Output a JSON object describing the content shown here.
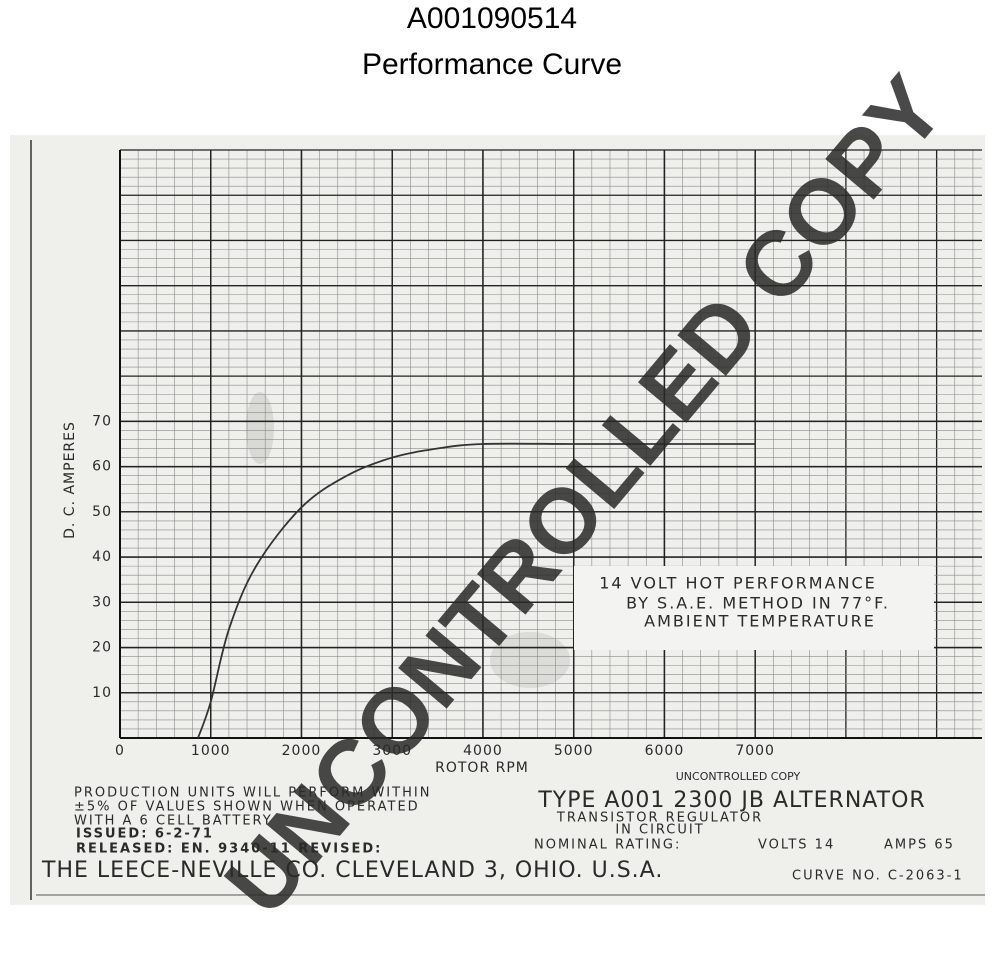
{
  "chart_data": {
    "type": "line",
    "title": "A001090514",
    "subtitle": "Performance Curve",
    "x_label": "ROTOR RPM",
    "y_label": "D. C.  AMPERES",
    "x": [
      860,
      1000,
      1200,
      1500,
      2000,
      2500,
      3000,
      3500,
      4000,
      5000,
      6000,
      7000
    ],
    "values": [
      0,
      8,
      24,
      38,
      51,
      58,
      62,
      64,
      65,
      65,
      65,
      65
    ],
    "color": "#333333",
    "xlim": [
      0,
      9500
    ],
    "ylim": [
      0,
      130
    ],
    "xticks": [
      0,
      1000,
      2000,
      3000,
      4000,
      5000,
      6000,
      7000
    ],
    "yticks": [
      10,
      20,
      30,
      40,
      50,
      60,
      70
    ],
    "grid": true,
    "annotations": [
      "14  VOLT  HOT  PERFORMANCE",
      "BY  S.A.E.  METHOD  IN  77°F.",
      "AMBIENT   TEMPERATURE"
    ],
    "stamp": "UNCONTROLLED COPY",
    "notes": [
      "PRODUCTION  UNITS  WILL  PERFORM  WITHIN",
      "±5%  OF  VALUES  SHOWN  WHEN  OPERATED",
      "WITH  A    6  CELL  BATTERY",
      "ISSUED: 6-2-71",
      "RELEASED: EN. 9340-11      REVISED:"
    ],
    "model": "TYPE  A001 2300 JB  ALTERNATOR",
    "regulator": [
      "TRANSISTOR  REGULATOR",
      "IN  CIRCUIT"
    ],
    "rating": {
      "label": "NOMINAL RATING:",
      "volts": "VOLTS 14",
      "amps": "AMPS 65"
    },
    "company": "THE LEECE-NEVILLE CO. CLEVELAND 3, OHIO. U.S.A.",
    "curve_number": "CURVE NO. C-2063-1",
    "watermark": "UNCONTROLLED COPY"
  }
}
